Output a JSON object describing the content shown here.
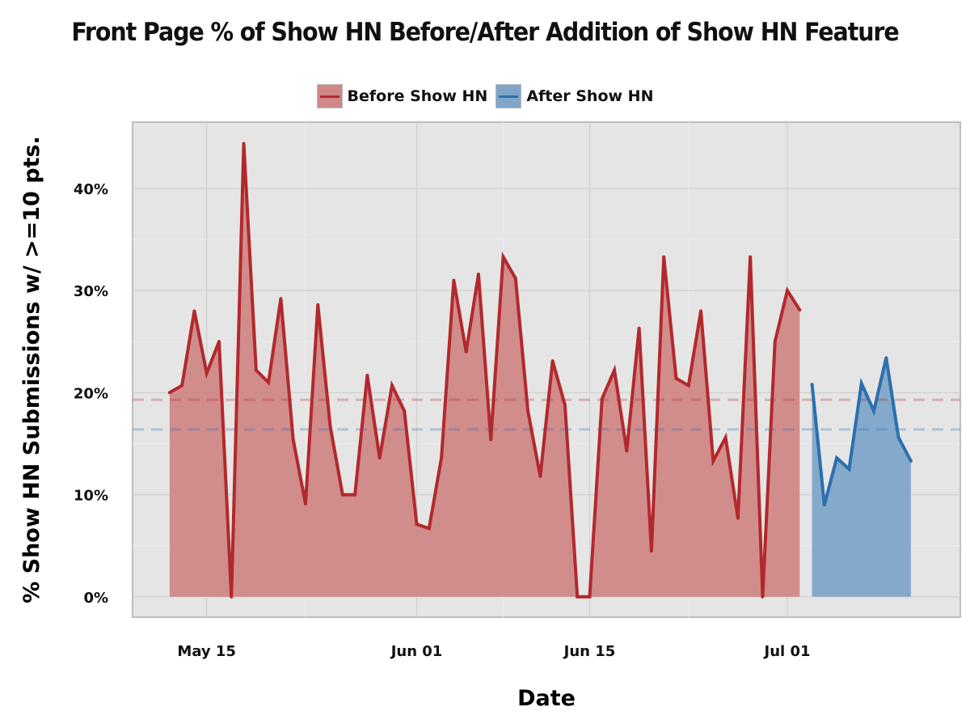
{
  "chart_data": {
    "type": "area",
    "title": "Front Page % of Show HN Before/After Addition of Show HN Feature",
    "xlabel": "Date",
    "ylabel": "% Show HN Submissions w/ >=10 pts.",
    "x_ticks": [
      {
        "label": "May 15",
        "date": "2014-05-15"
      },
      {
        "label": "Jun 01",
        "date": "2014-06-01"
      },
      {
        "label": "Jun 15",
        "date": "2014-06-15"
      },
      {
        "label": "Jul 01",
        "date": "2014-07-01"
      }
    ],
    "xlim": [
      "2014-05-09",
      "2014-07-15"
    ],
    "y_ticks": [
      0,
      10,
      20,
      30,
      40
    ],
    "y_tick_labels": [
      "0%",
      "10%",
      "20%",
      "30%",
      "40%"
    ],
    "ylim": [
      -2,
      46.5
    ],
    "grid": true,
    "legend_position": "top-center",
    "series": [
      {
        "name": "Before Show HN",
        "color": "#b2292c",
        "fill": "#d08787",
        "mean": 19.3,
        "dates": [
          "2014-05-12",
          "2014-05-13",
          "2014-05-14",
          "2014-05-15",
          "2014-05-16",
          "2014-05-17",
          "2014-05-18",
          "2014-05-19",
          "2014-05-20",
          "2014-05-21",
          "2014-05-22",
          "2014-05-23",
          "2014-05-24",
          "2014-05-25",
          "2014-05-26",
          "2014-05-27",
          "2014-05-28",
          "2014-05-29",
          "2014-05-30",
          "2014-05-31",
          "2014-06-01",
          "2014-06-02",
          "2014-06-03",
          "2014-06-04",
          "2014-06-05",
          "2014-06-06",
          "2014-06-07",
          "2014-06-08",
          "2014-06-09",
          "2014-06-10",
          "2014-06-11",
          "2014-06-12",
          "2014-06-13",
          "2014-06-14",
          "2014-06-15",
          "2014-06-16",
          "2014-06-17",
          "2014-06-18",
          "2014-06-19",
          "2014-06-20",
          "2014-06-21",
          "2014-06-22",
          "2014-06-23",
          "2014-06-24",
          "2014-06-25",
          "2014-06-26",
          "2014-06-27",
          "2014-06-28",
          "2014-06-29",
          "2014-06-30",
          "2014-07-01",
          "2014-07-02"
        ],
        "values": [
          20.0,
          20.7,
          28.0,
          21.9,
          25.0,
          0.0,
          44.4,
          22.2,
          21.0,
          29.2,
          15.4,
          9.1,
          28.6,
          16.7,
          10.0,
          10.0,
          21.7,
          13.6,
          20.7,
          18.2,
          7.1,
          6.7,
          13.6,
          31.0,
          24.0,
          31.6,
          15.4,
          33.3,
          31.2,
          18.2,
          11.8,
          23.1,
          18.8,
          0.0,
          0.0,
          19.4,
          22.2,
          14.3,
          26.3,
          4.5,
          33.3,
          21.4,
          20.7,
          28.0,
          13.3,
          15.6,
          7.7,
          33.3,
          0.0,
          25.0,
          30.0,
          28.1
        ]
      },
      {
        "name": "After Show HN",
        "color": "#2b6fae",
        "fill": "#7fa5c8",
        "mean": 16.4,
        "dates": [
          "2014-07-03",
          "2014-07-04",
          "2014-07-05",
          "2014-07-06",
          "2014-07-07",
          "2014-07-08",
          "2014-07-09",
          "2014-07-10",
          "2014-07-11"
        ],
        "values": [
          20.8,
          9.0,
          13.6,
          12.5,
          20.9,
          18.2,
          23.4,
          15.6,
          13.3
        ]
      }
    ]
  }
}
